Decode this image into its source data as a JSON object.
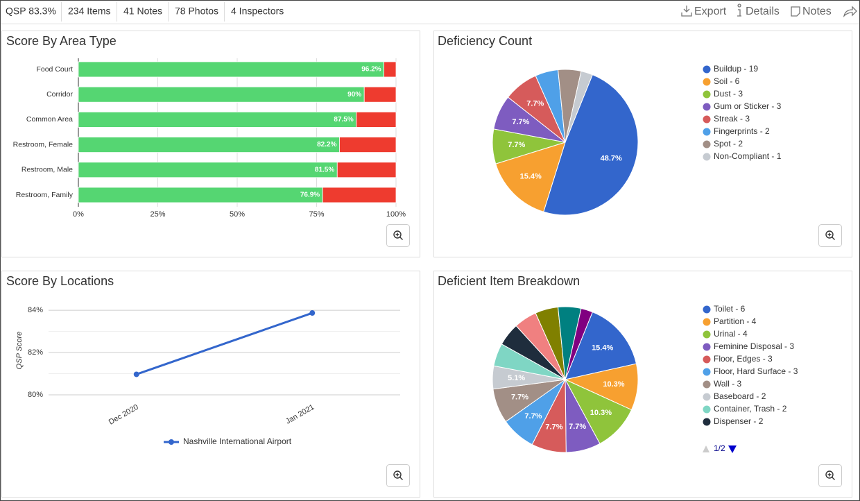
{
  "toolbar": {
    "stats": [
      "QSP 83.3%",
      "234 Items",
      "41 Notes",
      "78 Photos",
      "4 Inspectors"
    ],
    "actions": [
      "Export",
      "Details",
      "Notes"
    ]
  },
  "chart_data": [
    {
      "type": "stacked_barh",
      "title": "Score By Area Type",
      "categories": [
        "Food Court",
        "Corridor",
        "Common Area",
        "Restroom, Female",
        "Restroom, Male",
        "Restroom, Family"
      ],
      "series": [
        {
          "color": "#55d672",
          "values": [
            96.2,
            90,
            87.5,
            82.2,
            81.5,
            76.9
          ],
          "value_labels": [
            "96.2%",
            "90%",
            "87.5%",
            "82.2%",
            "81.5%",
            "76.9%"
          ]
        },
        {
          "color": "#ee3b2f",
          "values": [
            3.8,
            10,
            12.5,
            17.8,
            18.5,
            23.1
          ]
        }
      ],
      "xlim": [
        0,
        100
      ],
      "xticks": [
        {
          "value": 0,
          "label": "0%"
        },
        {
          "value": 25,
          "label": "25%"
        },
        {
          "value": 50,
          "label": "50%"
        },
        {
          "value": 75,
          "label": "75%"
        },
        {
          "value": 100,
          "label": "100%"
        }
      ],
      "grid": true
    },
    {
      "type": "pie",
      "title": "Deficiency Count",
      "categories": [
        "Buildup - 19",
        "Soil - 6",
        "Dust - 3",
        "Gum or Sticker - 3",
        "Streak - 3",
        "Fingerprints - 2",
        "Spot - 2",
        "Non-Compliant - 1"
      ],
      "values": [
        48.7,
        15.4,
        7.7,
        7.7,
        7.7,
        5.1,
        5.1,
        2.6
      ],
      "value_labels": [
        "48.7%",
        "15.4%",
        "7.7%",
        "7.7%",
        "7.7%",
        null,
        null,
        null
      ],
      "colors": [
        "#3366cc",
        "#f7a030",
        "#8fc43b",
        "#7e5cc0",
        "#d65b5b",
        "#4fa0e8",
        "#a28f86",
        "#c6cbd1"
      ]
    },
    {
      "type": "line",
      "title": "Score By Locations",
      "x": [
        "Dec 2020",
        "Jan 2021"
      ],
      "series": [
        {
          "name": "Nashville International Airport",
          "color": "#3366cc",
          "values": [
            80.97,
            83.87
          ]
        }
      ],
      "ylabel": "QSP Score",
      "ylim": [
        80,
        84.2
      ],
      "yticks": [
        {
          "value": 80,
          "label": "80%"
        },
        {
          "value": 82,
          "label": "82%"
        },
        {
          "value": 84,
          "label": "84%"
        }
      ],
      "minor_yticks": [
        81,
        83
      ],
      "grid": true
    },
    {
      "type": "pie",
      "title": "Deficient Item Breakdown",
      "categories": [
        "Toilet - 6",
        "Partition - 4",
        "Urinal - 4",
        "Feminine Disposal - 3",
        "Floor, Edges - 3",
        "Floor, Hard Surface - 3",
        "Wall - 3",
        "Baseboard - 2",
        "Container, Trash - 2",
        "Dispenser - 2",
        null,
        null,
        null,
        null
      ],
      "values": [
        15.4,
        10.3,
        10.3,
        7.7,
        7.7,
        7.7,
        7.7,
        5.1,
        5.1,
        5.1,
        5.1,
        5.1,
        5.1,
        2.6
      ],
      "value_labels": [
        "15.4%",
        "10.3%",
        "10.3%",
        "7.7%",
        "7.7%",
        "7.7%",
        "7.7%",
        "5.1%",
        null,
        null,
        null,
        null,
        null,
        null
      ],
      "colors": [
        "#3366cc",
        "#f7a030",
        "#8fc43b",
        "#7e5cc0",
        "#d65b5b",
        "#4fa0e8",
        "#a28f86",
        "#c6cbd1",
        "#7fd6c4",
        "#1f2d3d",
        "#f08080",
        "#808000",
        "#008080",
        "#800080"
      ],
      "legend_pager": "1/2"
    }
  ]
}
